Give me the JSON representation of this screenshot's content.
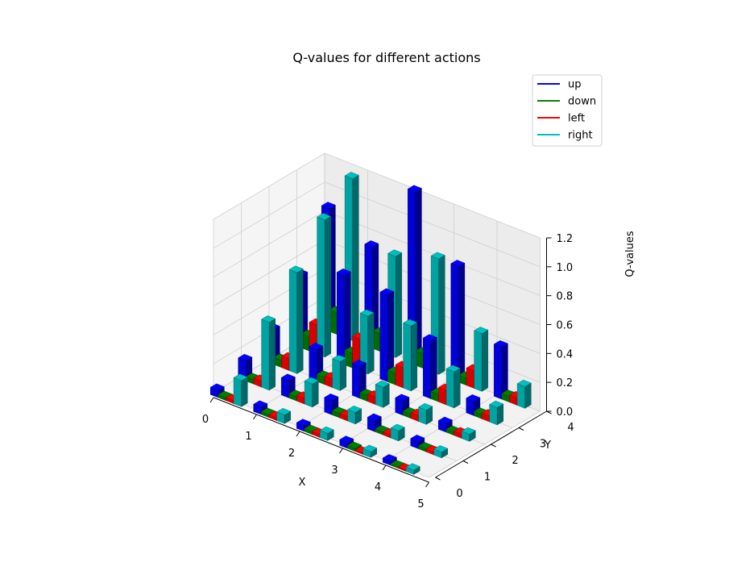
{
  "chart_data": {
    "type": "bar3d",
    "title": "Q-values for different actions",
    "xlabel": "X",
    "ylabel": "Y",
    "zlabel": "Q-values",
    "x_ticks": [
      "0",
      "1",
      "2",
      "3",
      "4",
      "5"
    ],
    "y_ticks": [
      "0",
      "1",
      "2",
      "3",
      "4"
    ],
    "z_ticks": [
      "0.0",
      "0.2",
      "0.4",
      "0.6",
      "0.8",
      "1.0",
      "1.2"
    ],
    "xlim": [
      0,
      5
    ],
    "ylim": [
      0,
      4
    ],
    "zlim": [
      0,
      1.2
    ],
    "grid": true,
    "legend_position": "top-right",
    "x": [
      0,
      1,
      2,
      3,
      4
    ],
    "y": [
      0,
      1,
      2,
      3,
      4
    ],
    "series": [
      {
        "name": "up",
        "color": "#0000ff",
        "values": [
          [
            0.05,
            0.14,
            0.24,
            0.5,
            0.85
          ],
          [
            0.05,
            0.12,
            0.22,
            0.62,
            0.7
          ],
          [
            0.04,
            0.1,
            0.22,
            0.6,
            1.2
          ],
          [
            0.04,
            0.08,
            0.1,
            0.4,
            0.8
          ],
          [
            0.03,
            0.05,
            0.06,
            0.1,
            0.36
          ]
        ]
      },
      {
        "name": "down",
        "color": "#008000",
        "values": [
          [
            0.02,
            0.03,
            0.05,
            0.1,
            0.15
          ],
          [
            0.02,
            0.03,
            0.05,
            0.1,
            0.12
          ],
          [
            0.02,
            0.03,
            0.04,
            0.08,
            0.1
          ],
          [
            0.02,
            0.02,
            0.03,
            0.05,
            0.05
          ],
          [
            0.01,
            0.02,
            0.02,
            0.03,
            0.04
          ]
        ]
      },
      {
        "name": "left",
        "color": "#ff0000",
        "values": [
          [
            0.02,
            0.04,
            0.08,
            0.2,
            0.35
          ],
          [
            0.02,
            0.04,
            0.06,
            0.22,
            0.3
          ],
          [
            0.02,
            0.03,
            0.05,
            0.14,
            0.2
          ],
          [
            0.01,
            0.02,
            0.04,
            0.1,
            0.12
          ],
          [
            0.01,
            0.02,
            0.03,
            0.04,
            0.05
          ]
        ]
      },
      {
        "name": "right",
        "color": "#00bfbf",
        "values": [
          [
            0.18,
            0.47,
            0.7,
            0.95,
            1.12
          ],
          [
            0.06,
            0.16,
            0.2,
            0.4,
            0.7
          ],
          [
            0.05,
            0.08,
            0.14,
            0.45,
            0.8
          ],
          [
            0.04,
            0.07,
            0.1,
            0.25,
            0.4
          ],
          [
            0.03,
            0.04,
            0.05,
            0.12,
            0.15
          ]
        ]
      }
    ]
  }
}
